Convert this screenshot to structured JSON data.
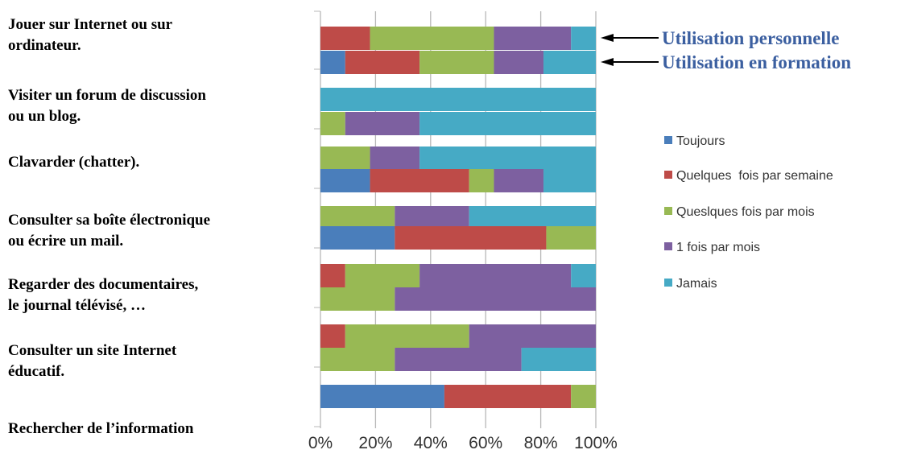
{
  "chart_data": {
    "type": "bar",
    "orientation": "horizontal",
    "stacked": true,
    "normalized_percent": true,
    "categories": [
      {
        "lines": [
          "Jouer sur Internet ou sur",
          "ordinateur."
        ],
        "bars": [
          {
            "label": "Utilisation personnelle",
            "values": [
              0,
              18,
              45,
              28,
              9
            ]
          },
          {
            "label": "Utilisation en formation",
            "values": [
              9,
              27,
              27,
              18,
              19
            ]
          }
        ]
      },
      {
        "lines": [
          "Visiter un forum de discussion",
          "ou un blog."
        ],
        "bars": [
          {
            "label": "Utilisation personnelle",
            "values": [
              0,
              0,
              0,
              0,
              100
            ]
          },
          {
            "label": "Utilisation en formation",
            "values": [
              0,
              0,
              9,
              27,
              64
            ]
          }
        ]
      },
      {
        "lines": [
          "Clavarder (chatter)."
        ],
        "bars": [
          {
            "label": "Utilisation personnelle",
            "values": [
              0,
              0,
              18,
              18,
              64
            ]
          },
          {
            "label": "Utilisation en formation",
            "values": [
              18,
              36,
              9,
              18,
              19
            ]
          }
        ]
      },
      {
        "lines": [
          "Consulter sa boîte électronique",
          "ou écrire un mail."
        ],
        "bars": [
          {
            "label": "Utilisation personnelle",
            "values": [
              0,
              0,
              27,
              27,
              46
            ]
          },
          {
            "label": "Utilisation en formation",
            "values": [
              27,
              55,
              18,
              0,
              0
            ]
          }
        ]
      },
      {
        "lines": [
          "Regarder des documentaires,",
          "le journal télévisé, …"
        ],
        "bars": [
          {
            "label": "Utilisation personnelle",
            "values": [
              0,
              9,
              27,
              55,
              9
            ]
          },
          {
            "label": "Utilisation en formation",
            "values": [
              0,
              0,
              27,
              73,
              0
            ]
          }
        ]
      },
      {
        "lines": [
          "Consulter un site Internet",
          "éducatif."
        ],
        "bars": [
          {
            "label": "Utilisation personnelle",
            "values": [
              0,
              9,
              45,
              46,
              0
            ]
          },
          {
            "label": "Utilisation en formation",
            "values": [
              0,
              0,
              27,
              46,
              27
            ]
          }
        ]
      },
      {
        "lines": [
          "Rechercher de l’information"
        ],
        "bars": [
          {
            "label": "Utilisation en formation",
            "values": [
              45,
              46,
              9,
              0,
              0
            ]
          }
        ]
      }
    ],
    "series": [
      {
        "name": "Toujours",
        "color": "#4a7ebb"
      },
      {
        "name": "Quelques  fois par semaine",
        "color": "#be4b48"
      },
      {
        "name": "Queslques fois par mois",
        "color": "#98b954"
      },
      {
        "name": "1 fois par mois",
        "color": "#7d60a0"
      },
      {
        "name": "Jamais",
        "color": "#46aac5"
      }
    ],
    "x_ticks": [
      "0%",
      "20%",
      "40%",
      "60%",
      "80%",
      "100%"
    ],
    "xlim": [
      0,
      100
    ],
    "grid": true,
    "legend_position": "right",
    "annotations": [
      "Utilisation personnelle",
      "Utilisation en formation"
    ]
  }
}
